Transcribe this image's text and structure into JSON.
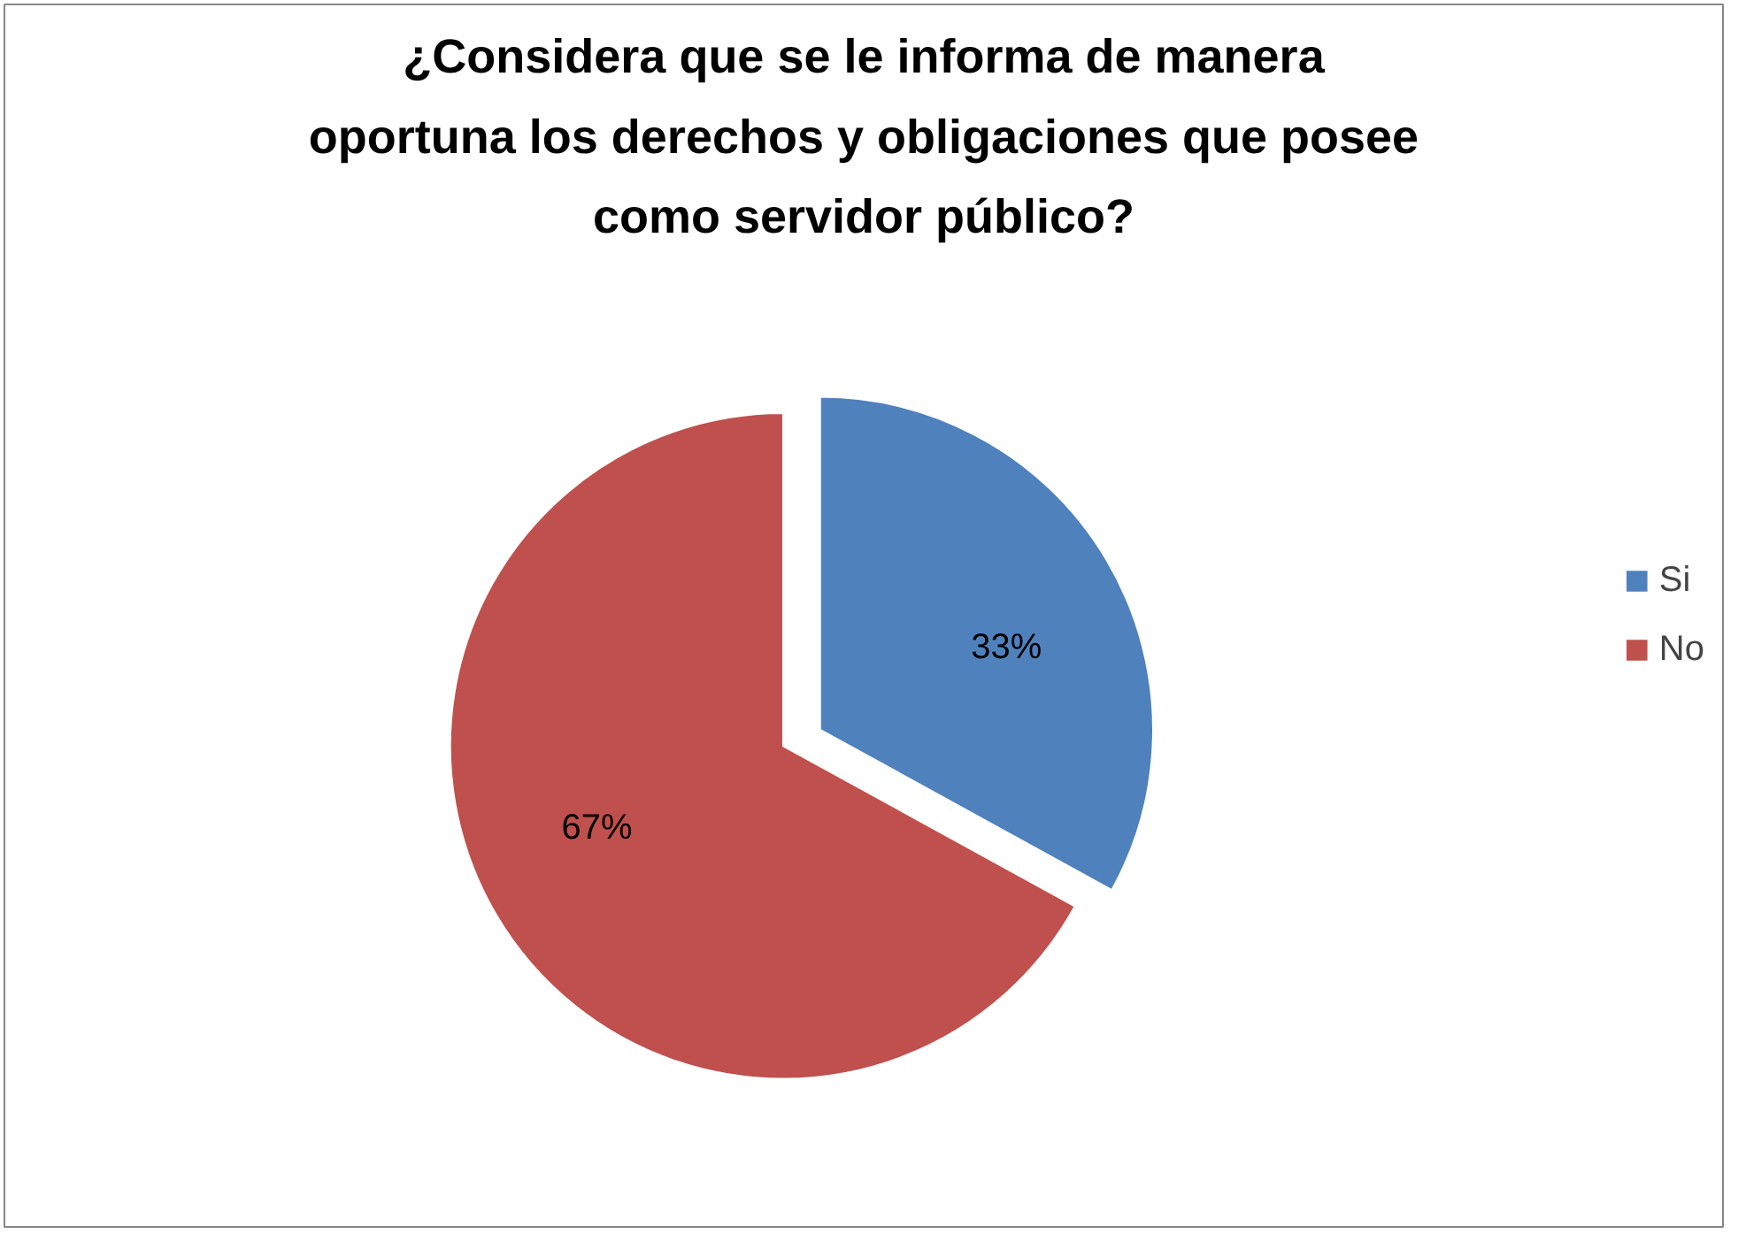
{
  "chart_data": {
    "type": "pie",
    "title": "¿Considera que se le informa de manera oportuna los derechos y obligaciones que posee como servidor público?",
    "categories": [
      "Si",
      "No"
    ],
    "values": [
      33,
      67
    ],
    "colors": [
      "#4f81bd",
      "#c0504d"
    ],
    "value_labels": [
      "33%",
      "67%"
    ],
    "legend": "right"
  }
}
